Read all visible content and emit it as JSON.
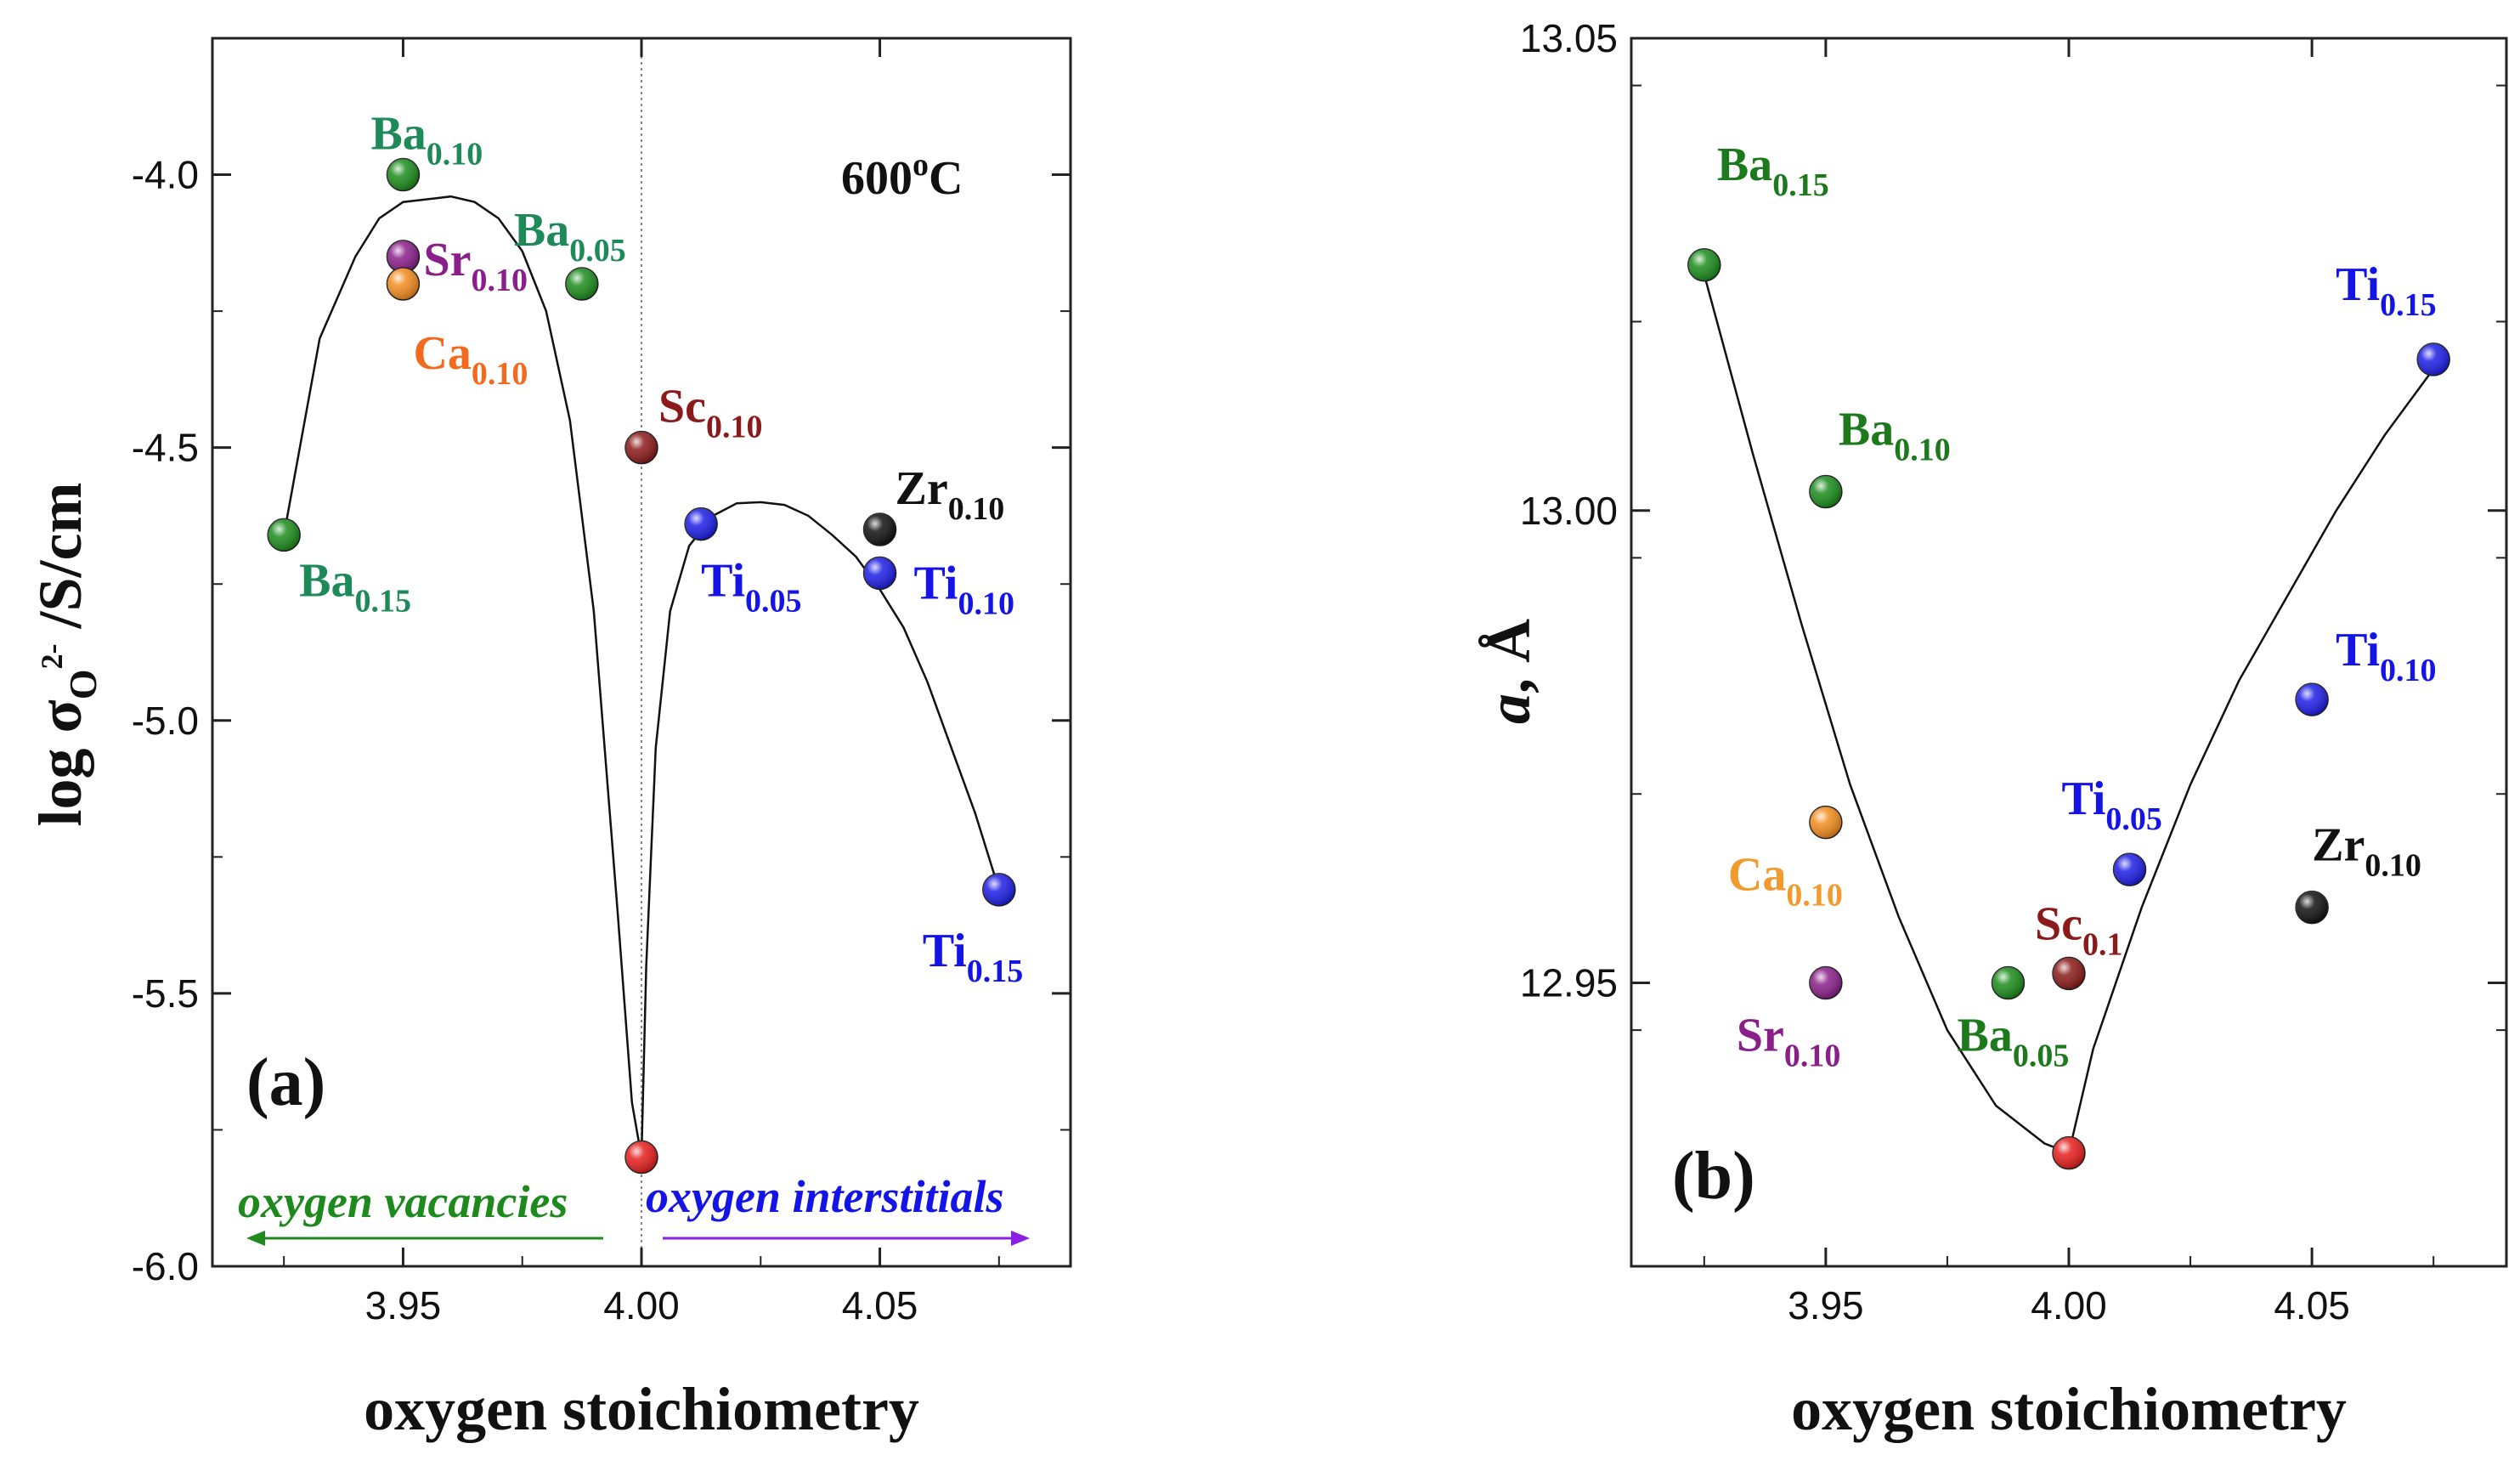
{
  "chart_data": [
    {
      "type": "scatter",
      "panel_label": "(a)",
      "temperature": {
        "base": "600",
        "sup": "o",
        "unit": "C"
      },
      "xlabel": "oxygen stoichiometry",
      "ylabel": {
        "pre": "log σ",
        "sub": "O",
        "sup": "2-",
        "post": " /S/cm"
      },
      "xlim": [
        3.91,
        4.09
      ],
      "ylim": [
        -6.0,
        -3.75
      ],
      "xticks": [
        "3.95",
        "4.00",
        "4.05"
      ],
      "xtick_values": [
        3.95,
        4.0,
        4.05
      ],
      "yticks": [
        "-4.0",
        "-4.5",
        "-5.0",
        "-5.5",
        "-6.0"
      ],
      "ytick_values": [
        -4.0,
        -4.5,
        -5.0,
        -5.5,
        -6.0
      ],
      "reference_line_x": 4.0,
      "annotations": [
        {
          "text": "oxygen vacancies",
          "color": "#1e8a1e",
          "arrow": "left"
        },
        {
          "text": "oxygen interstitials",
          "color": "#1414e6",
          "arrow": "right"
        }
      ],
      "points": [
        {
          "el": "Ba",
          "sub": "0.15",
          "x": 3.925,
          "y": -4.66,
          "color": "#1c8c1c",
          "label_color": "#1e8a5a"
        },
        {
          "el": "Ba",
          "sub": "0.10",
          "x": 3.95,
          "y": -4.0,
          "color": "#1c8c1c",
          "label_color": "#1e8a5a"
        },
        {
          "el": "Sr",
          "sub": "0.10",
          "x": 3.95,
          "y": -4.15,
          "color": "#8a1f8a",
          "label_color": "#8a1f8a"
        },
        {
          "el": "Ca",
          "sub": "0.10",
          "x": 3.95,
          "y": -4.2,
          "color": "#f28c1e",
          "label_color": "#f26a1e"
        },
        {
          "el": "Ba",
          "sub": "0.05",
          "x": 3.9875,
          "y": -4.2,
          "color": "#1c8c1c",
          "label_color": "#1e8a5a"
        },
        {
          "el": "Sc",
          "sub": "0.10",
          "x": 4.0,
          "y": -4.5,
          "color": "#8b1a1a",
          "label_color": "#8b1a1a"
        },
        {
          "el": "",
          "sub": "",
          "x": 4.0,
          "y": -5.8,
          "color": "#e61e1e",
          "label_color": "#e61e1e"
        },
        {
          "el": "Ti",
          "sub": "0.05",
          "x": 4.0125,
          "y": -4.64,
          "color": "#1e1ee6",
          "label_color": "#1414e6"
        },
        {
          "el": "Zr",
          "sub": "0.10",
          "x": 4.05,
          "y": -4.65,
          "color": "#111111",
          "label_color": "#111111"
        },
        {
          "el": "Ti",
          "sub": "0.10",
          "x": 4.05,
          "y": -4.73,
          "color": "#1e1ee6",
          "label_color": "#1414e6"
        },
        {
          "el": "Ti",
          "sub": "0.15",
          "x": 4.075,
          "y": -5.31,
          "color": "#1e1ee6",
          "label_color": "#1414e6"
        }
      ],
      "fit_left_x": [
        3.925,
        3.9325,
        3.94,
        3.945,
        3.95,
        3.955,
        3.96,
        3.965,
        3.97,
        3.975,
        3.98,
        3.985,
        3.99,
        3.995,
        3.998,
        4.0
      ],
      "fit_left_y": [
        -4.66,
        -4.3,
        -4.15,
        -4.08,
        -4.05,
        -4.045,
        -4.04,
        -4.05,
        -4.08,
        -4.14,
        -4.25,
        -4.45,
        -4.8,
        -5.35,
        -5.7,
        -5.8
      ],
      "fit_right_x": [
        4.0,
        4.001,
        4.003,
        4.006,
        4.01,
        4.015,
        4.02,
        4.025,
        4.03,
        4.035,
        4.04,
        4.045,
        4.05,
        4.055,
        4.06,
        4.065,
        4.07,
        4.075
      ],
      "fit_right_y": [
        -5.8,
        -5.45,
        -5.05,
        -4.8,
        -4.68,
        -4.625,
        -4.602,
        -4.6,
        -4.605,
        -4.625,
        -4.66,
        -4.7,
        -4.76,
        -4.83,
        -4.93,
        -5.05,
        -5.17,
        -5.31
      ]
    },
    {
      "type": "scatter",
      "panel_label": "(b)",
      "xlabel": "oxygen stoichiometry",
      "ylabel": {
        "italic": "a",
        "post": ", Å"
      },
      "xlim": [
        3.91,
        4.09
      ],
      "ylim": [
        12.92,
        13.05
      ],
      "xticks": [
        "3.95",
        "4.00",
        "4.05"
      ],
      "xtick_values": [
        3.95,
        4.0,
        4.05
      ],
      "yticks": [
        "13.05",
        "13.00",
        "12.95"
      ],
      "ytick_values": [
        13.05,
        13.0,
        12.95
      ],
      "points": [
        {
          "el": "Ba",
          "sub": "0.15",
          "x": 3.925,
          "y": 13.026,
          "color": "#1c8c1c",
          "label_color": "#1c7a1c"
        },
        {
          "el": "Ba",
          "sub": "0.10",
          "x": 3.95,
          "y": 13.002,
          "color": "#1c8c1c",
          "label_color": "#1c7a1c"
        },
        {
          "el": "Ca",
          "sub": "0.10",
          "x": 3.95,
          "y": 12.967,
          "color": "#f28c1e",
          "label_color": "#f29a2e"
        },
        {
          "el": "Sr",
          "sub": "0.10",
          "x": 3.95,
          "y": 12.95,
          "color": "#8a1f8a",
          "label_color": "#8a1f8a"
        },
        {
          "el": "Ba",
          "sub": "0.05",
          "x": 3.9875,
          "y": 12.95,
          "color": "#1c8c1c",
          "label_color": "#1c7a1c"
        },
        {
          "el": "Sc",
          "sub": "0.1",
          "x": 4.0,
          "y": 12.951,
          "color": "#8b1a1a",
          "label_color": "#8b1a1a"
        },
        {
          "el": "",
          "sub": "",
          "x": 4.0,
          "y": 12.932,
          "color": "#e61e1e",
          "label_color": "#e61e1e"
        },
        {
          "el": "Ti",
          "sub": "0.05",
          "x": 4.0125,
          "y": 12.962,
          "color": "#1e1ee6",
          "label_color": "#1414e6"
        },
        {
          "el": "Ti",
          "sub": "0.10",
          "x": 4.05,
          "y": 12.98,
          "color": "#1e1ee6",
          "label_color": "#1414e6"
        },
        {
          "el": "Ti",
          "sub": "0.15",
          "x": 4.075,
          "y": 13.016,
          "color": "#1e1ee6",
          "label_color": "#1414e6"
        },
        {
          "el": "Zr",
          "sub": "0.10",
          "x": 4.05,
          "y": 12.958,
          "color": "#111111",
          "label_color": "#111111"
        }
      ],
      "fit_x": [
        3.925,
        3.935,
        3.945,
        3.955,
        3.965,
        3.975,
        3.985,
        3.995,
        4.0,
        4.005,
        4.015,
        4.025,
        4.035,
        4.045,
        4.055,
        4.065,
        4.075
      ],
      "fit_y": [
        13.025,
        13.006,
        12.988,
        12.971,
        12.957,
        12.945,
        12.937,
        12.933,
        12.932,
        12.943,
        12.958,
        12.971,
        12.982,
        12.991,
        13.0,
        13.008,
        13.015
      ]
    }
  ]
}
